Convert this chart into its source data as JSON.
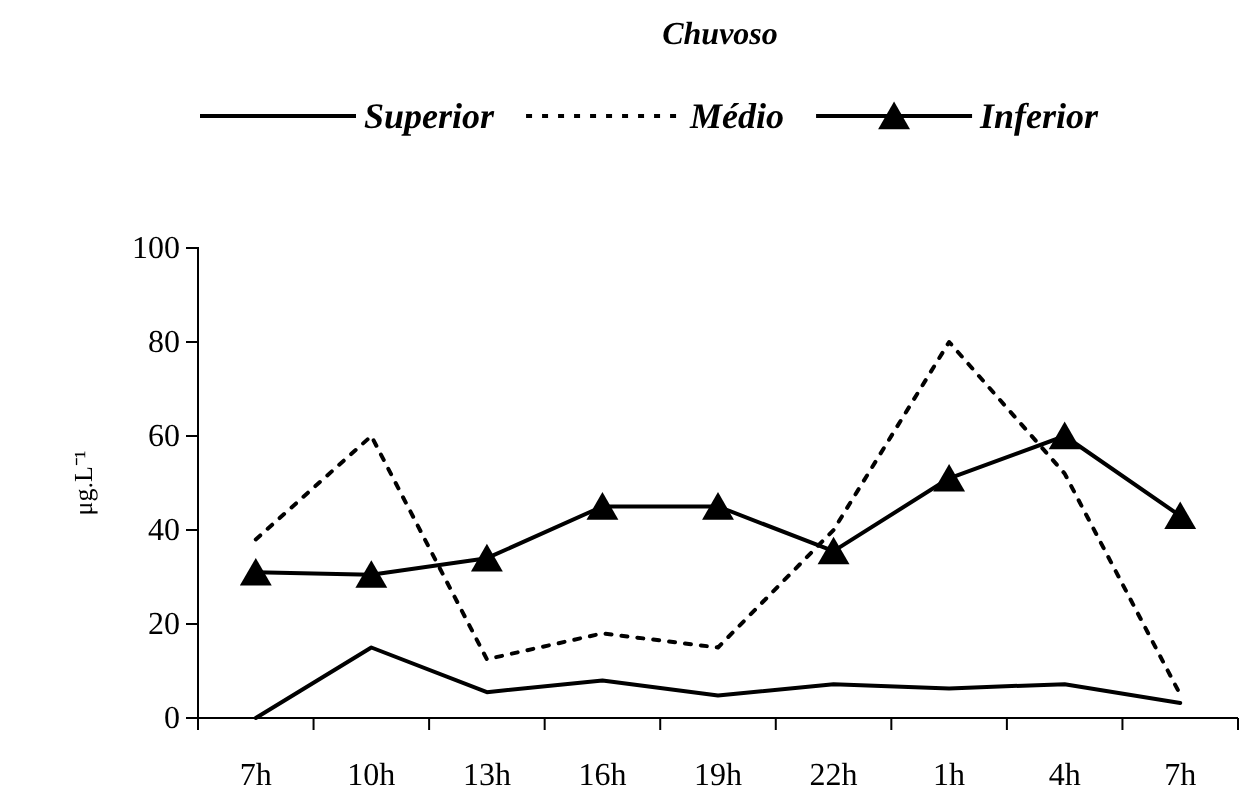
{
  "chart_data": {
    "type": "line",
    "title": "Chuvoso",
    "ylabel": "μg.L⁻¹",
    "categories": [
      "7h",
      "10h",
      "13h",
      "16h",
      "19h",
      "22h",
      "1h",
      "4h",
      "7h"
    ],
    "series": [
      {
        "name": "Superior",
        "color": "#000000",
        "line_style": "solid",
        "marker": "none",
        "values": [
          0,
          15,
          5.5,
          8,
          4.8,
          7.2,
          6.3,
          7.2,
          3.2
        ]
      },
      {
        "name": "Médio",
        "color": "#000000",
        "line_style": "dotted",
        "marker": "none",
        "values": [
          38,
          60,
          12.5,
          18,
          15,
          40,
          80,
          52,
          5
        ]
      },
      {
        "name": "Inferior",
        "color": "#000000",
        "line_style": "solid",
        "marker": "triangle",
        "values": [
          31,
          30.5,
          34,
          45,
          45,
          35.5,
          51,
          60,
          43
        ]
      }
    ],
    "ylim": [
      0,
      100
    ],
    "yticks": [
      0,
      20,
      40,
      60,
      80,
      100
    ],
    "grid": false,
    "legend": "top"
  }
}
